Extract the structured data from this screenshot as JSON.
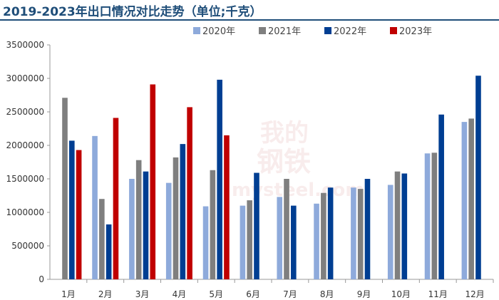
{
  "chart_data": {
    "type": "bar",
    "title": "2019-2023年出口情况对比走势（单位;千克）",
    "categories": [
      "1月",
      "2月",
      "3月",
      "4月",
      "5月",
      "6月",
      "7月",
      "8月",
      "9月",
      "10月",
      "11月",
      "12月"
    ],
    "series": [
      {
        "name": "2020年",
        "color": "#8eaadb",
        "values": [
          null,
          2140000,
          1500000,
          1440000,
          1090000,
          1100000,
          1230000,
          1130000,
          1370000,
          1410000,
          1880000,
          2350000
        ]
      },
      {
        "name": "2021年",
        "color": "#7f7f7f",
        "values": [
          2710000,
          1200000,
          1780000,
          1820000,
          1630000,
          1180000,
          1500000,
          1290000,
          1350000,
          1610000,
          1890000,
          2400000
        ]
      },
      {
        "name": "2022年",
        "color": "#003e92",
        "values": [
          2070000,
          820000,
          1610000,
          2020000,
          2980000,
          1590000,
          1100000,
          1370000,
          1500000,
          1580000,
          2460000,
          3040000
        ]
      },
      {
        "name": "2023年",
        "color": "#c00000",
        "values": [
          1930000,
          2410000,
          2910000,
          2570000,
          2150000,
          null,
          null,
          null,
          null,
          null,
          null,
          null
        ]
      }
    ],
    "ylim": [
      0,
      3500000
    ],
    "yticks": [
      0,
      500000,
      1000000,
      1500000,
      2000000,
      2500000,
      3000000,
      3500000
    ],
    "ytick_labels": [
      "0",
      "500000",
      "1000000",
      "1500000",
      "2000000",
      "2500000",
      "3000000",
      "3500000"
    ],
    "legend_position": "top-center",
    "grid": false
  },
  "watermark": {
    "line1": "我的",
    "line2": "钢铁",
    "line3": "mysteel.com"
  }
}
